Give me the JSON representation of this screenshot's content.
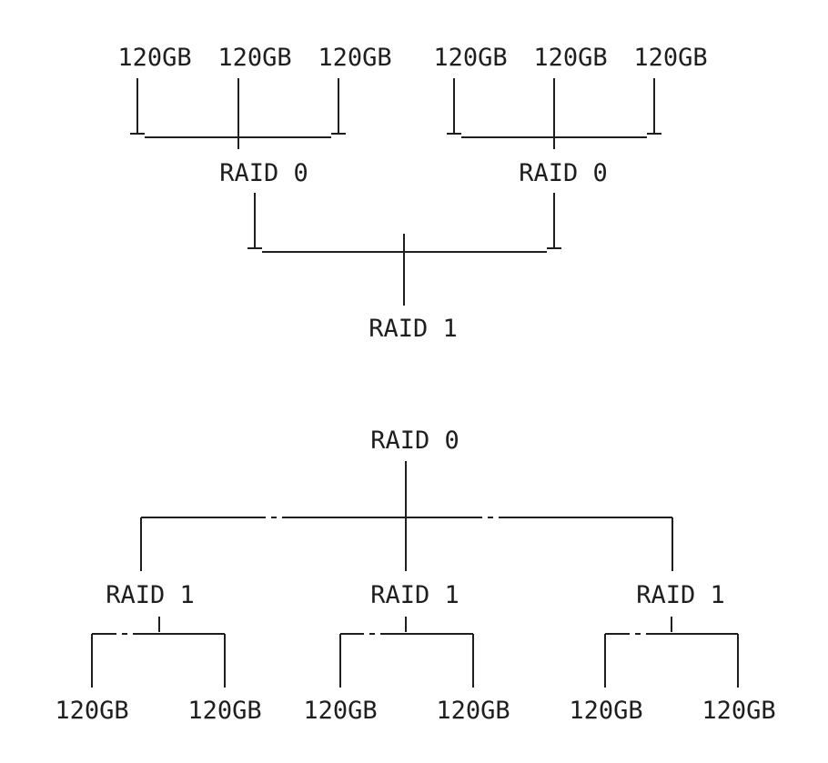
{
  "top_diagram": {
    "disks": [
      "120GB",
      "120GB",
      "120GB",
      "120GB",
      "120GB",
      "120GB"
    ],
    "stripes": [
      "RAID 0",
      "RAID 0"
    ],
    "mirror": "RAID 1"
  },
  "bottom_diagram": {
    "stripe": "RAID 0",
    "mirrors": [
      "RAID 1",
      "RAID 1",
      "RAID 1"
    ],
    "disks": [
      "120GB",
      "120GB",
      "120GB",
      "120GB",
      "120GB",
      "120GB"
    ]
  }
}
